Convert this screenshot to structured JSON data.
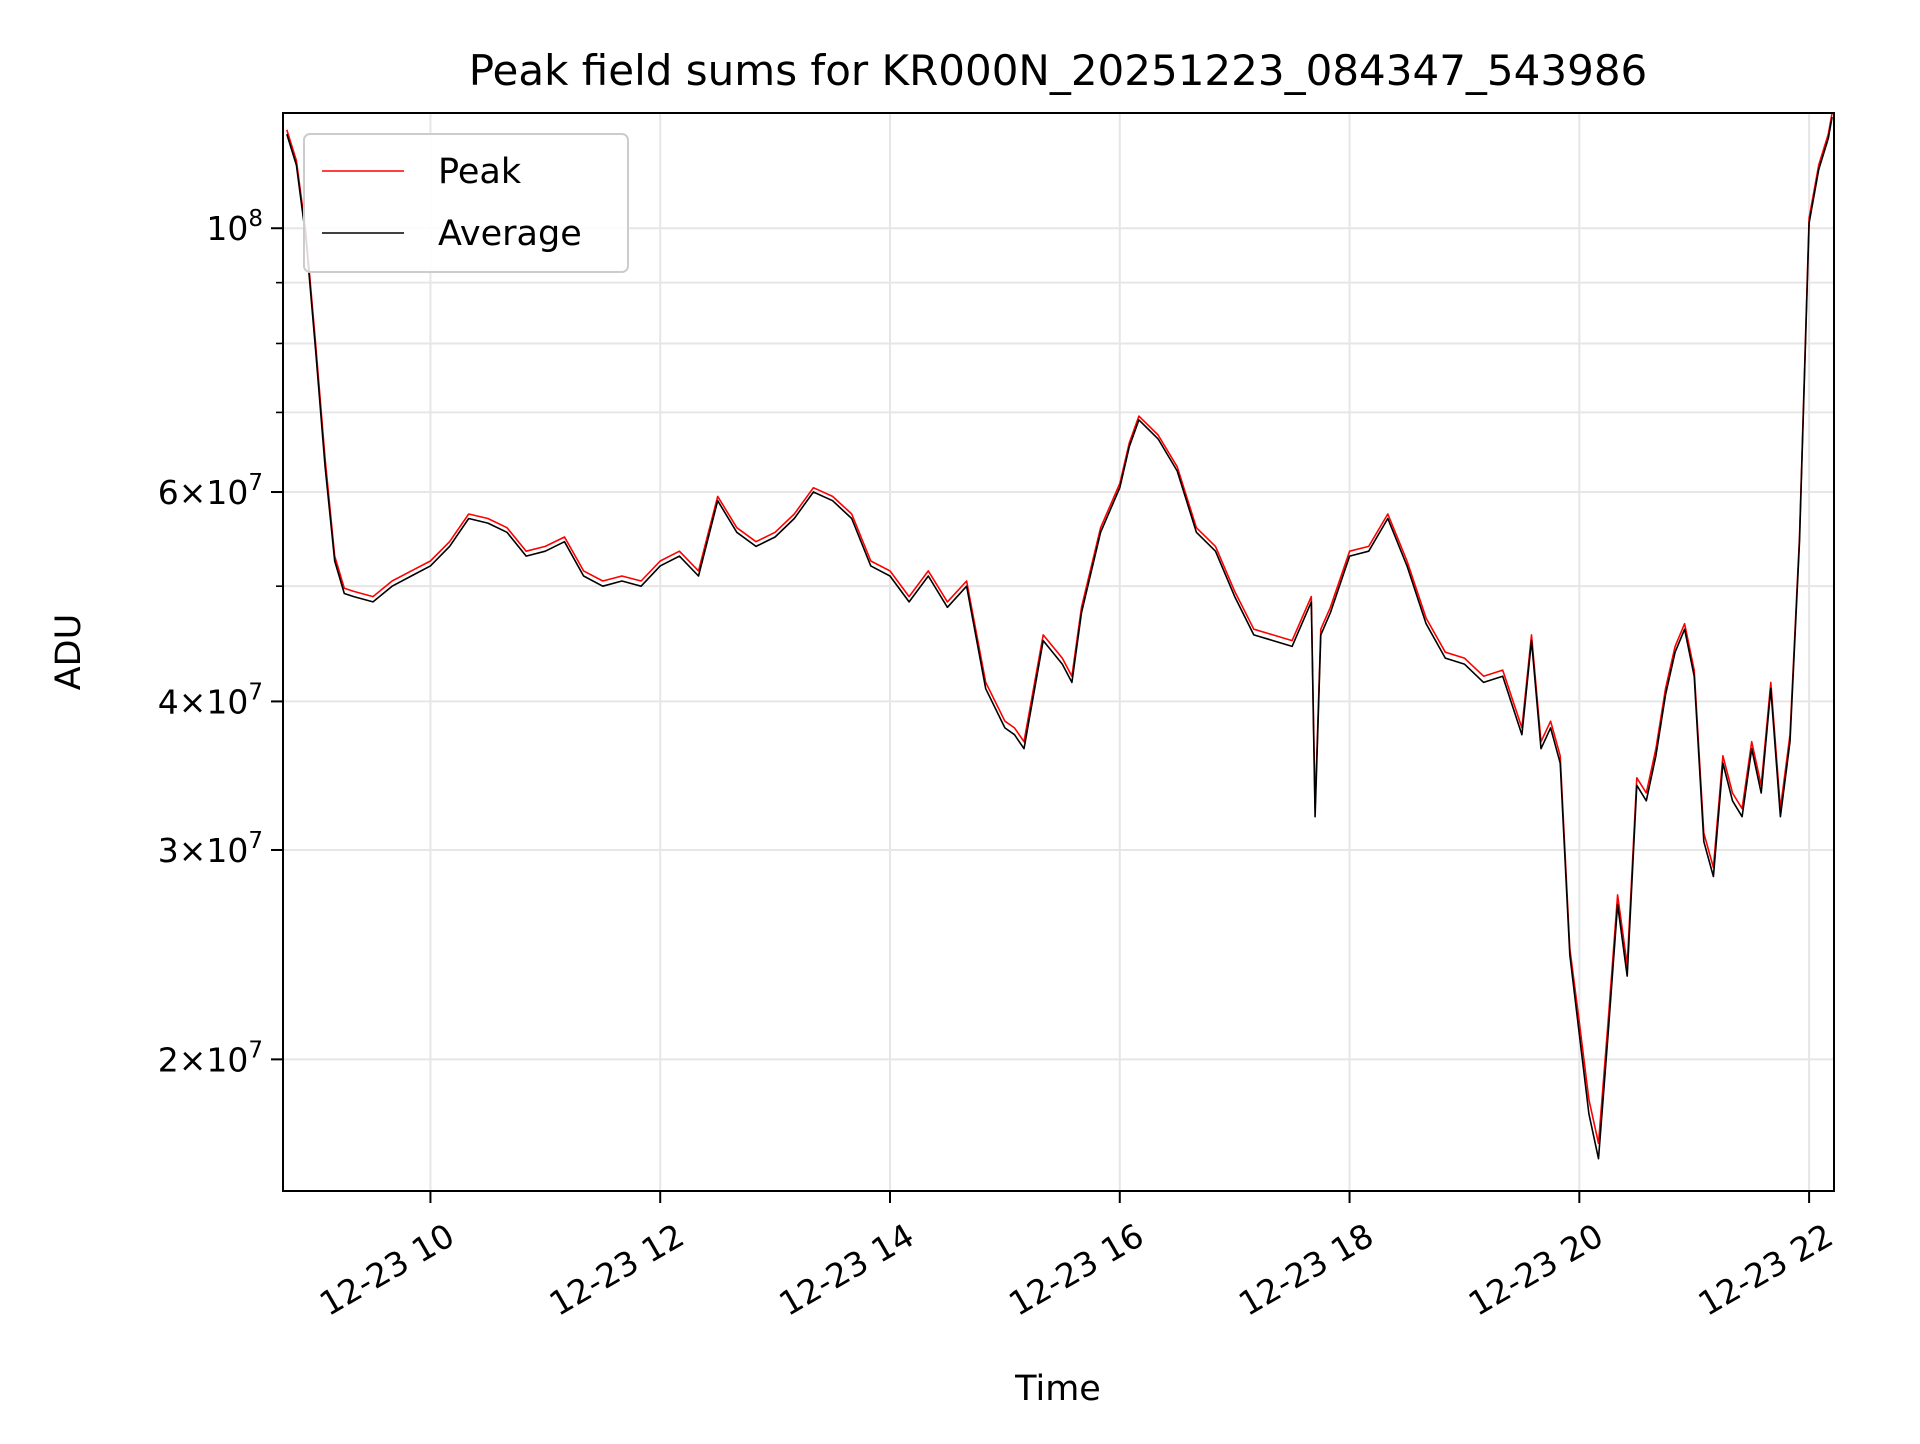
{
  "chart_data": {
    "type": "line",
    "title": "Peak field sums for KR000N_20251223_084347_543986",
    "xlabel": "Time",
    "ylabel": "ADU",
    "yscale": "log",
    "xlim": [
      "2025-12-23 08:43",
      "2025-12-23 22:13"
    ],
    "ylim": [
      15500000,
      125000000
    ],
    "grid": true,
    "legend_position": "top-left",
    "x_ticks": [
      {
        "value": "2025-12-23 10:00",
        "label": "12-23 10"
      },
      {
        "value": "2025-12-23 12:00",
        "label": "12-23 12"
      },
      {
        "value": "2025-12-23 14:00",
        "label": "12-23 14"
      },
      {
        "value": "2025-12-23 16:00",
        "label": "12-23 16"
      },
      {
        "value": "2025-12-23 18:00",
        "label": "12-23 18"
      },
      {
        "value": "2025-12-23 20:00",
        "label": "12-23 20"
      },
      {
        "value": "2025-12-23 22:00",
        "label": "12-23 22"
      }
    ],
    "y_ticks": [
      {
        "value": 20000000,
        "mantissa": "2",
        "exponent": "7"
      },
      {
        "value": 30000000,
        "mantissa": "3",
        "exponent": "7"
      },
      {
        "value": 40000000,
        "mantissa": "4",
        "exponent": "7"
      },
      {
        "value": 60000000,
        "mantissa": "6",
        "exponent": "7"
      },
      {
        "value": 100000000,
        "mantissa": "",
        "exponent": "8"
      }
    ],
    "y_minor_ticks": [
      50000000,
      70000000,
      80000000,
      90000000
    ],
    "x": [
      "2025-12-23 08:45",
      "2025-12-23 08:50",
      "2025-12-23 08:55",
      "2025-12-23 09:00",
      "2025-12-23 09:05",
      "2025-12-23 09:10",
      "2025-12-23 09:15",
      "2025-12-23 09:20",
      "2025-12-23 09:30",
      "2025-12-23 09:40",
      "2025-12-23 09:50",
      "2025-12-23 10:00",
      "2025-12-23 10:10",
      "2025-12-23 10:20",
      "2025-12-23 10:30",
      "2025-12-23 10:40",
      "2025-12-23 10:50",
      "2025-12-23 11:00",
      "2025-12-23 11:10",
      "2025-12-23 11:20",
      "2025-12-23 11:30",
      "2025-12-23 11:40",
      "2025-12-23 11:50",
      "2025-12-23 12:00",
      "2025-12-23 12:10",
      "2025-12-23 12:20",
      "2025-12-23 12:30",
      "2025-12-23 12:40",
      "2025-12-23 12:50",
      "2025-12-23 13:00",
      "2025-12-23 13:10",
      "2025-12-23 13:20",
      "2025-12-23 13:30",
      "2025-12-23 13:40",
      "2025-12-23 13:50",
      "2025-12-23 14:00",
      "2025-12-23 14:10",
      "2025-12-23 14:20",
      "2025-12-23 14:30",
      "2025-12-23 14:40",
      "2025-12-23 14:50",
      "2025-12-23 15:00",
      "2025-12-23 15:05",
      "2025-12-23 15:10",
      "2025-12-23 15:20",
      "2025-12-23 15:30",
      "2025-12-23 15:35",
      "2025-12-23 15:40",
      "2025-12-23 15:50",
      "2025-12-23 16:00",
      "2025-12-23 16:05",
      "2025-12-23 16:10",
      "2025-12-23 16:20",
      "2025-12-23 16:30",
      "2025-12-23 16:40",
      "2025-12-23 16:50",
      "2025-12-23 17:00",
      "2025-12-23 17:10",
      "2025-12-23 17:20",
      "2025-12-23 17:30",
      "2025-12-23 17:40",
      "2025-12-23 17:42",
      "2025-12-23 17:45",
      "2025-12-23 17:50",
      "2025-12-23 18:00",
      "2025-12-23 18:10",
      "2025-12-23 18:20",
      "2025-12-23 18:30",
      "2025-12-23 18:40",
      "2025-12-23 18:50",
      "2025-12-23 19:00",
      "2025-12-23 19:10",
      "2025-12-23 19:20",
      "2025-12-23 19:30",
      "2025-12-23 19:35",
      "2025-12-23 19:40",
      "2025-12-23 19:45",
      "2025-12-23 19:50",
      "2025-12-23 19:55",
      "2025-12-23 20:00",
      "2025-12-23 20:05",
      "2025-12-23 20:10",
      "2025-12-23 20:15",
      "2025-12-23 20:20",
      "2025-12-23 20:25",
      "2025-12-23 20:30",
      "2025-12-23 20:35",
      "2025-12-23 20:40",
      "2025-12-23 20:45",
      "2025-12-23 20:50",
      "2025-12-23 20:55",
      "2025-12-23 21:00",
      "2025-12-23 21:05",
      "2025-12-23 21:10",
      "2025-12-23 21:15",
      "2025-12-23 21:20",
      "2025-12-23 21:25",
      "2025-12-23 21:30",
      "2025-12-23 21:35",
      "2025-12-23 21:40",
      "2025-12-23 21:45",
      "2025-12-23 21:50",
      "2025-12-23 21:55",
      "2025-12-23 22:00",
      "2025-12-23 22:05",
      "2025-12-23 22:10",
      "2025-12-23 22:12"
    ],
    "series": [
      {
        "name": "Peak",
        "color": "#ff0000",
        "values": [
          121000000,
          114000000,
          99000000,
          80000000,
          64000000,
          53000000,
          49800000,
          49500000,
          49000000,
          50500000,
          51500000,
          52500000,
          54500000,
          57500000,
          57000000,
          56000000,
          53500000,
          54000000,
          55000000,
          51500000,
          50500000,
          51000000,
          50500000,
          52500000,
          53500000,
          51500000,
          59500000,
          56000000,
          54500000,
          55500000,
          57500000,
          60500000,
          59500000,
          57500000,
          52500000,
          51500000,
          49000000,
          51500000,
          48500000,
          50500000,
          41500000,
          38500000,
          38000000,
          37000000,
          45500000,
          43500000,
          42000000,
          48000000,
          56000000,
          61000000,
          66000000,
          69500000,
          67000000,
          63000000,
          56000000,
          54000000,
          49500000,
          46000000,
          45500000,
          45000000,
          49000000,
          32500000,
          46000000,
          48000000,
          53500000,
          54000000,
          57500000,
          52500000,
          47000000,
          44000000,
          43500000,
          42000000,
          42500000,
          38000000,
          45500000,
          37000000,
          38500000,
          36000000,
          24800000,
          21500000,
          18500000,
          17000000,
          21500000,
          27500000,
          24000000,
          34500000,
          33500000,
          36500000,
          41000000,
          44500000,
          46500000,
          42500000,
          31000000,
          29000000,
          36000000,
          33500000,
          32500000,
          37000000,
          34000000,
          41500000,
          32500000,
          37500000,
          55000000,
          102000000,
          113000000,
          120000000,
          125000000
        ]
      },
      {
        "name": "Average",
        "color": "#000000",
        "values": [
          120000000,
          113000000,
          98000000,
          79000000,
          63000000,
          52500000,
          49300000,
          49000000,
          48500000,
          50000000,
          51000000,
          52000000,
          54000000,
          57000000,
          56500000,
          55500000,
          53000000,
          53500000,
          54500000,
          51000000,
          50000000,
          50500000,
          50000000,
          52000000,
          53000000,
          51000000,
          59000000,
          55500000,
          54000000,
          55000000,
          57000000,
          60000000,
          59000000,
          57000000,
          52000000,
          51000000,
          48500000,
          51000000,
          48000000,
          50000000,
          41000000,
          38000000,
          37500000,
          36500000,
          45000000,
          43000000,
          41500000,
          47500000,
          55500000,
          60500000,
          65500000,
          69000000,
          66500000,
          62500000,
          55500000,
          53500000,
          49000000,
          45500000,
          45000000,
          44500000,
          48500000,
          32000000,
          45500000,
          47500000,
          53000000,
          53500000,
          57000000,
          52000000,
          46500000,
          43500000,
          43000000,
          41500000,
          42000000,
          37500000,
          45000000,
          36500000,
          38000000,
          35500000,
          24500000,
          21000000,
          18000000,
          16500000,
          21000000,
          27000000,
          23500000,
          34000000,
          33000000,
          36000000,
          40500000,
          44000000,
          46000000,
          42000000,
          30500000,
          28500000,
          35500000,
          33000000,
          32000000,
          36500000,
          33500000,
          41000000,
          32000000,
          37000000,
          54500000,
          101000000,
          112000000,
          119000000,
          124000000
        ]
      }
    ]
  }
}
